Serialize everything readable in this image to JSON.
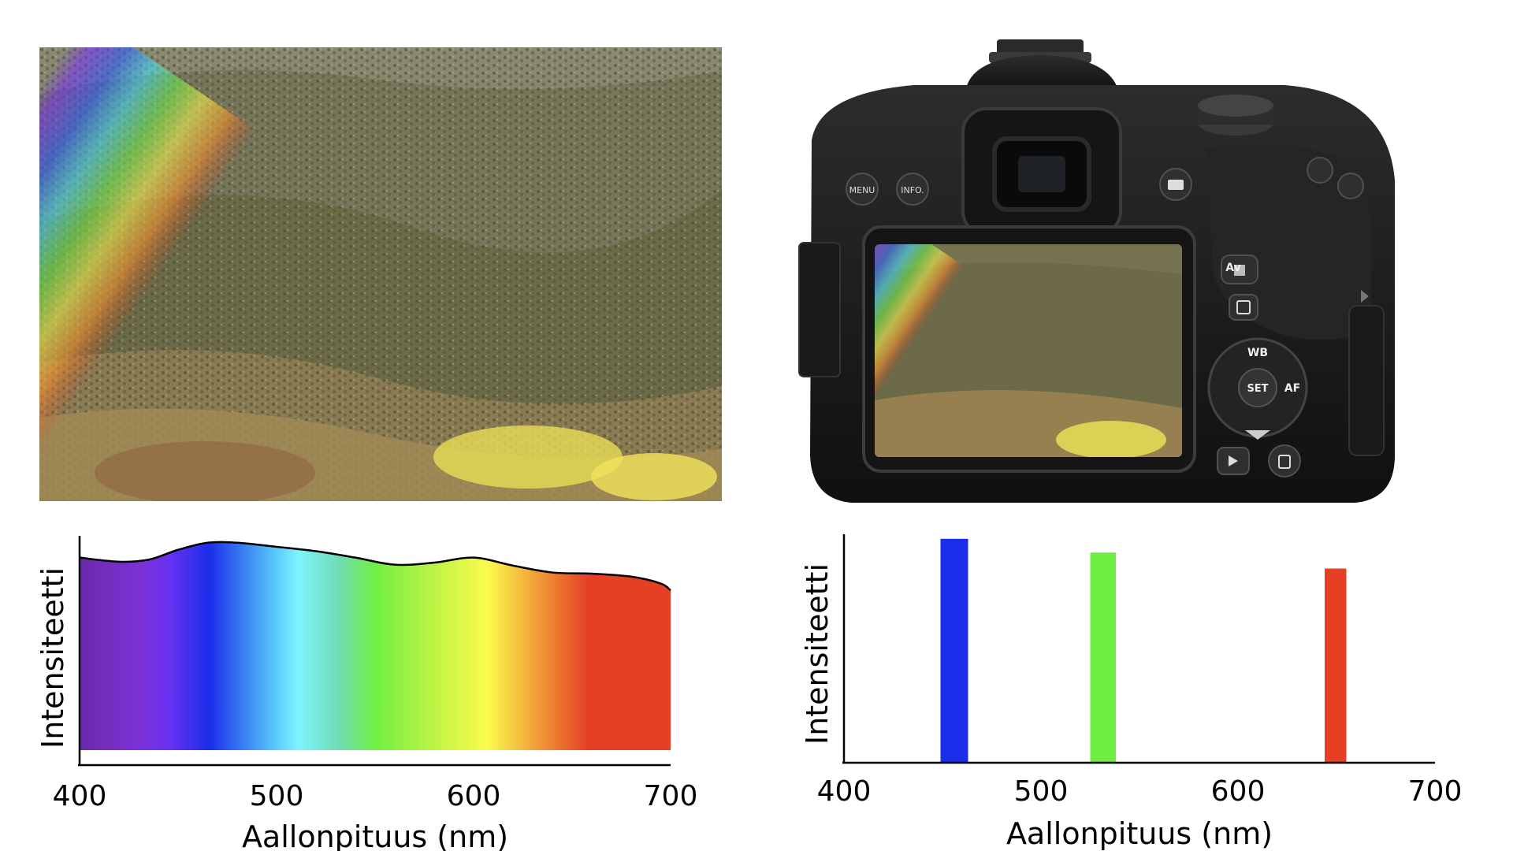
{
  "colors": {
    "violet": "#6a2aa8",
    "blue": "#1a2eea",
    "cyan": "#7df4ff",
    "green": "#70ef43",
    "yellow": "#fbfb4d",
    "orange": "#f2a238",
    "red": "#e53f24",
    "camera_body": "#1b1b1b"
  },
  "photo": {
    "subject": "rainbow over hillside"
  },
  "camera": {
    "buttons": {
      "menu": "MENU",
      "info": "INFO.",
      "av": "Av",
      "wb": "WB",
      "set": "SET",
      "af": "AF"
    }
  },
  "chart_data": [
    {
      "type": "area",
      "xlabel": "Aallonpituus (nm)",
      "ylabel": "Intensiteetti",
      "xlim": [
        400,
        700
      ],
      "ylim": [
        0,
        1
      ],
      "x_ticks": [
        "400",
        "500",
        "600",
        "700"
      ],
      "fill": "visible-spectrum gradient",
      "x": [
        400,
        420,
        435,
        450,
        465,
        480,
        500,
        520,
        540,
        560,
        580,
        600,
        620,
        640,
        660,
        680,
        695,
        700
      ],
      "values": [
        0.905,
        0.887,
        0.896,
        0.939,
        0.97,
        0.97,
        0.952,
        0.933,
        0.905,
        0.874,
        0.883,
        0.905,
        0.87,
        0.84,
        0.835,
        0.822,
        0.792,
        0.762
      ]
    },
    {
      "type": "bar",
      "xlabel": "Aallonpituus (nm)",
      "ylabel": "Intensiteetti",
      "xlim": [
        400,
        700
      ],
      "ylim": [
        0,
        1
      ],
      "x_ticks": [
        "400",
        "500",
        "600",
        "700"
      ],
      "series": [
        {
          "x": [
            449,
            463
          ],
          "value": 0.98,
          "color": "#1a2eea"
        },
        {
          "x": [
            525,
            538
          ],
          "value": 0.92,
          "color": "#70ef43"
        },
        {
          "x": [
            644,
            655
          ],
          "value": 0.85,
          "color": "#e53f24"
        }
      ]
    }
  ]
}
